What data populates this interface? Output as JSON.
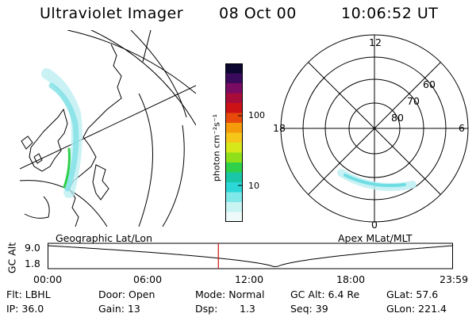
{
  "header": {
    "title": "Ultraviolet Imager",
    "date": "08 Oct 00",
    "time": "10:06:52 UT"
  },
  "left_panel": {
    "label": "Geographic Lat/Lon"
  },
  "right_panel": {
    "label": "Apex MLat/MLT",
    "mlt_labels": {
      "top": "12",
      "left": "18",
      "right": "6",
      "bottom": "0"
    },
    "lat_labels": [
      "60",
      "70",
      "80"
    ]
  },
  "colorbar": {
    "unit_label": "photon cm⁻²s⁻¹",
    "ticks": [
      "100",
      "10"
    ],
    "colors": [
      "#0b0730",
      "#3a0a5c",
      "#7a0b63",
      "#a80d3a",
      "#cc1215",
      "#e84a0c",
      "#f59a0a",
      "#f6c61b",
      "#d7e81a",
      "#8fe01a",
      "#2fd04a",
      "#19c7a6",
      "#2cd7d7",
      "#7fe8e8",
      "#c8f4f4",
      "#eefafa"
    ]
  },
  "timeline": {
    "y_axis_label": "GC Alt",
    "y_ticks": [
      "9.0",
      "1.8"
    ],
    "x_ticks": [
      "00:00",
      "06:00",
      "12:00",
      "18:00",
      "23:59"
    ],
    "current_time_hours": 10.11,
    "perigee_time_hours": 13.5
  },
  "footer": {
    "flt": "Flt: LBHL",
    "door": "Door: Open",
    "mode": "Mode: Normal",
    "gc_alt": "GC Alt: 6.4 Re",
    "glat": "GLat: 57.6",
    "ip": "IP: 36.0",
    "gain": "Gain: 13",
    "dsp_label": "Dsp:",
    "dsp_value": "1.3",
    "seq": "Seq: 39",
    "glon": "GLon: 221.4"
  }
}
